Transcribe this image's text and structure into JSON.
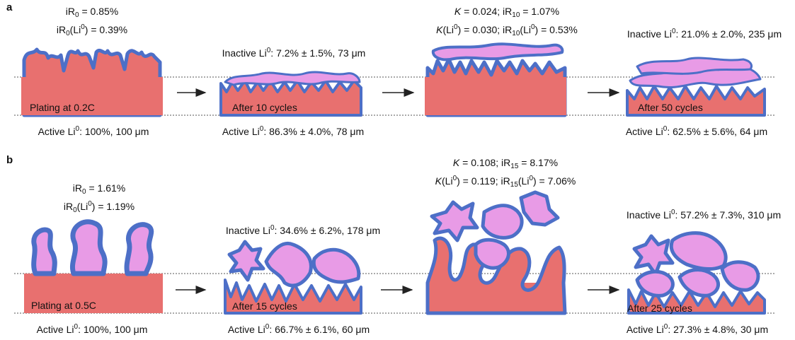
{
  "panel_a": {
    "label": "a",
    "top_left": {
      "ir0": "0.85%",
      "ir0_li": "0.39%"
    },
    "top_mid": {
      "k": "0.024",
      "ir10": "1.07%",
      "k_li": "0.030",
      "ir10_li": "0.53%"
    },
    "stages": [
      {
        "caption": "Plating at 0.2C",
        "active": "100%, 100 μm"
      },
      {
        "caption": "After 10 cycles",
        "active": "86.3% ± 4.0%, 78 μm",
        "inactive": "7.2% ± 1.5%, 73 μm"
      },
      {
        "caption": "",
        "active": "",
        "inactive": ""
      },
      {
        "caption": "After 50 cycles",
        "active": "62.5% ± 5.6%, 64 μm",
        "inactive": "21.0% ± 2.0%, 235 μm"
      }
    ]
  },
  "panel_b": {
    "label": "b",
    "top_left": {
      "ir0": "1.61%",
      "ir0_li": "1.19%"
    },
    "top_mid": {
      "k": "0.108",
      "ir15": "8.17%",
      "k_li": "0.119",
      "ir15_li": "7.06%"
    },
    "stages": [
      {
        "caption": "Plating at 0.5C",
        "active": "100%, 100 μm"
      },
      {
        "caption": "After 15 cycles",
        "active": "66.7% ± 6.1%, 60 μm",
        "inactive": "34.6% ± 6.2%, 178 μm"
      },
      {
        "caption": "",
        "active": "",
        "inactive": ""
      },
      {
        "caption": "After 25 cycles",
        "active": "27.3% ± 4.8%, 30 μm",
        "inactive": "57.2% ± 7.3%, 310 μm"
      }
    ]
  },
  "colors": {
    "active_li": "#e8706f",
    "sei": "#4d6fc7",
    "inactive_li": "#e89be6",
    "line": "#333333"
  }
}
